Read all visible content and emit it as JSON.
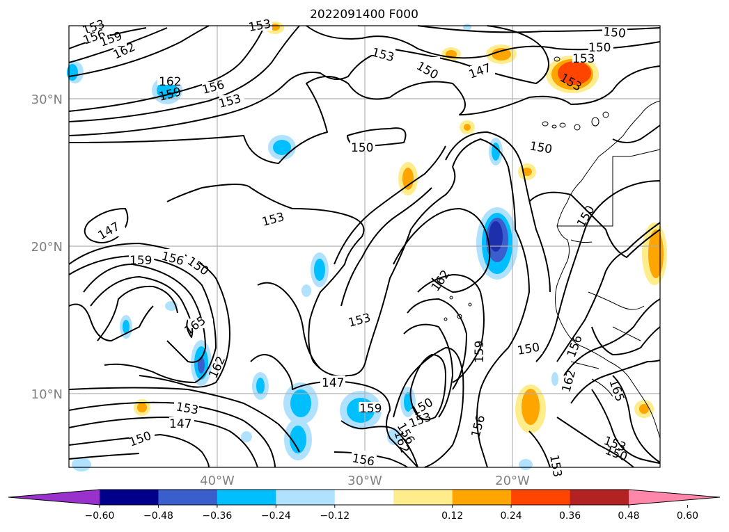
{
  "title": "2022091400 F000",
  "axes": {
    "lat_labels": [
      "30°N",
      "20°N",
      "10°N"
    ],
    "lon_labels": [
      "40°W",
      "30°W",
      "20°W"
    ]
  },
  "contour_labels": [
    "147",
    "150",
    "153",
    "156",
    "159",
    "162",
    "165"
  ],
  "colorbar": {
    "ticks": [
      "−0.60",
      "−0.48",
      "−0.36",
      "−0.24",
      "−0.12",
      "0.12",
      "0.24",
      "0.36",
      "0.48",
      "0.60"
    ],
    "colors": [
      "#9932cc",
      "#00008b",
      "#3a5fcd",
      "#00bfff",
      "#b0e2ff",
      "#ffffff",
      "#ffec8b",
      "#ffa500",
      "#ff4500",
      "#b22222",
      "#ff88aa"
    ]
  }
}
